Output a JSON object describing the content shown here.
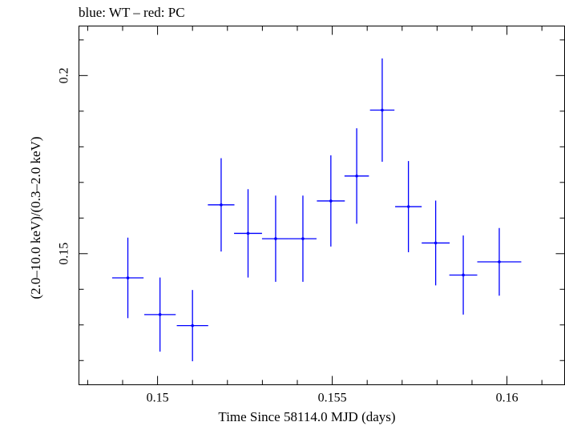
{
  "chart_data": {
    "type": "scatter",
    "title": "blue: WT – red: PC",
    "xlabel": "Time Since 58114.0 MJD (days)",
    "ylabel": "(2.0–10.0 keV)/(0.3–2.0 keV)",
    "xlim": [
      0.14775,
      0.16165
    ],
    "ylim": [
      0.1132,
      0.2139
    ],
    "x_ticks": [
      0.15,
      0.155,
      0.16
    ],
    "x_tick_labels": [
      "0.15",
      "0.155",
      "0.16"
    ],
    "y_ticks": [
      0.15,
      0.2
    ],
    "y_tick_labels": [
      "0.15",
      "0.2"
    ],
    "grid": false,
    "series": [
      {
        "color": "#0000ff",
        "points": [
          {
            "x": 0.14915,
            "xerr": 0.00045,
            "y": 0.1432,
            "yerr": 0.0113
          },
          {
            "x": 0.15007,
            "xerr": 0.00045,
            "y": 0.1329,
            "yerr": 0.0104
          },
          {
            "x": 0.151,
            "xerr": 0.00045,
            "y": 0.1298,
            "yerr": 0.01
          },
          {
            "x": 0.15182,
            "xerr": 0.00038,
            "y": 0.1637,
            "yerr": 0.0131
          },
          {
            "x": 0.15259,
            "xerr": 0.0004,
            "y": 0.1557,
            "yerr": 0.0124
          },
          {
            "x": 0.15338,
            "xerr": 0.00039,
            "y": 0.1542,
            "yerr": 0.0121
          },
          {
            "x": 0.15416,
            "xerr": 0.00039,
            "y": 0.1542,
            "yerr": 0.0121
          },
          {
            "x": 0.15496,
            "xerr": 0.0004,
            "y": 0.1648,
            "yerr": 0.0128
          },
          {
            "x": 0.1557,
            "xerr": 0.00035,
            "y": 0.1718,
            "yerr": 0.0134
          },
          {
            "x": 0.15643,
            "xerr": 0.00035,
            "y": 0.1903,
            "yerr": 0.0145
          },
          {
            "x": 0.15718,
            "xerr": 0.00038,
            "y": 0.1632,
            "yerr": 0.0128
          },
          {
            "x": 0.15796,
            "xerr": 0.0004,
            "y": 0.153,
            "yerr": 0.0119
          },
          {
            "x": 0.15875,
            "xerr": 0.0004,
            "y": 0.144,
            "yerr": 0.0111
          },
          {
            "x": 0.15978,
            "xerr": 0.00063,
            "y": 0.1477,
            "yerr": 0.0095
          }
        ]
      }
    ]
  }
}
